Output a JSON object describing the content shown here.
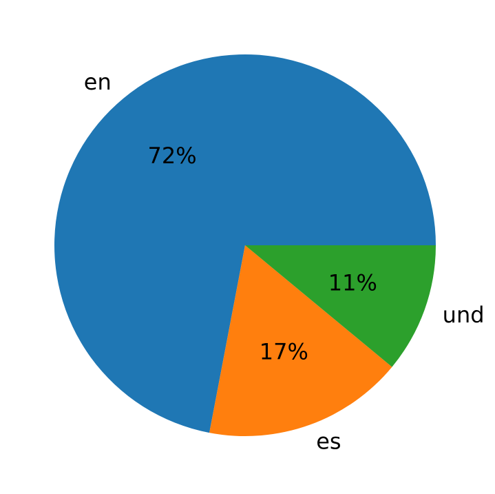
{
  "chart_data": {
    "type": "pie",
    "categories": [
      "en",
      "es",
      "und"
    ],
    "values": [
      72,
      17,
      11
    ],
    "value_labels": [
      "72%",
      "17%",
      "11%"
    ],
    "colors": [
      "#1f77b4",
      "#ff7f0e",
      "#2ca02c"
    ]
  }
}
